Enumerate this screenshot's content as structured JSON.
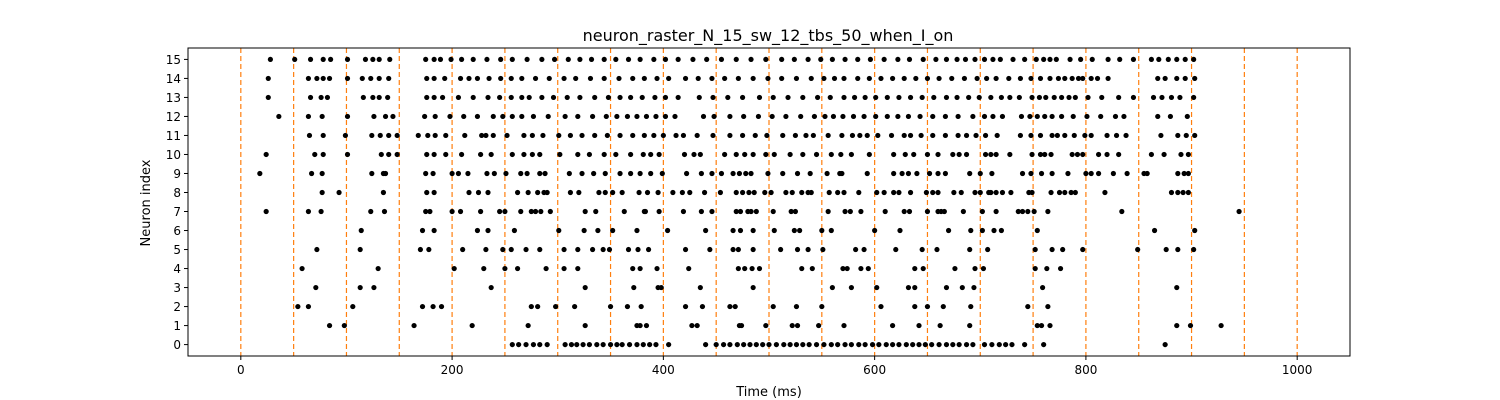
{
  "chart_data": {
    "type": "scatter",
    "title": "neuron_raster_N_15_sw_12_tbs_50_when_I_on",
    "xlabel": "Time (ms)",
    "ylabel": "Neuron index",
    "xlim": [
      -50,
      1050
    ],
    "ylim": [
      -0.6,
      15.6
    ],
    "xticks": [
      0,
      200,
      400,
      600,
      800,
      1000
    ],
    "yticks": [
      0,
      1,
      2,
      3,
      4,
      5,
      6,
      7,
      8,
      9,
      10,
      11,
      12,
      13,
      14,
      15
    ],
    "grid": false,
    "marker_color": "#000000",
    "vline_color": "#ff7f0e",
    "vlines": [
      0,
      50,
      100,
      150,
      200,
      250,
      300,
      350,
      400,
      450,
      500,
      550,
      600,
      650,
      700,
      750,
      800,
      850,
      900,
      950,
      1000
    ],
    "spikes": {
      "0": [
        257,
        263,
        270,
        277,
        283,
        290,
        307,
        313,
        318,
        324,
        330,
        337,
        343,
        350,
        356,
        361,
        368,
        375,
        381,
        387,
        393,
        405,
        440,
        450,
        457,
        463,
        470,
        476,
        482,
        488,
        494,
        500,
        507,
        514,
        520,
        526,
        532,
        538,
        545,
        552,
        559,
        565,
        572,
        578,
        585,
        591,
        598,
        604,
        611,
        617,
        623,
        630,
        636,
        642,
        648,
        654,
        661,
        668,
        674,
        680,
        687,
        693,
        704,
        711,
        718,
        724,
        730,
        742,
        760,
        875
      ],
      "1": [
        84,
        98,
        164,
        219,
        272,
        326,
        375,
        378,
        384,
        427,
        432,
        472,
        474,
        497,
        522,
        527,
        547,
        571,
        617,
        642,
        662,
        690,
        754,
        758,
        766,
        886,
        899,
        928
      ],
      "2": [
        54,
        64,
        106,
        172,
        182,
        190,
        275,
        281,
        298,
        316,
        350,
        366,
        379,
        421,
        437,
        463,
        468,
        504,
        526,
        550,
        606,
        638,
        650,
        665,
        691,
        745,
        764
      ],
      "3": [
        71,
        113,
        126,
        237,
        326,
        372,
        395,
        398,
        435,
        485,
        560,
        578,
        602,
        632,
        638,
        668,
        683,
        694,
        759,
        886
      ],
      "4": [
        58,
        130,
        202,
        230,
        250,
        262,
        289,
        306,
        319,
        371,
        378,
        394,
        424,
        471,
        477,
        484,
        491,
        531,
        541,
        570,
        574,
        587,
        594,
        638,
        646,
        676,
        695,
        703,
        752,
        763,
        776
      ],
      "5": [
        72,
        113,
        170,
        178,
        210,
        232,
        248,
        256,
        270,
        283,
        306,
        319,
        333,
        343,
        349,
        367,
        376,
        386,
        421,
        444,
        466,
        471,
        485,
        511,
        527,
        537,
        551,
        582,
        590,
        620,
        645,
        659,
        690,
        707,
        752,
        768,
        778,
        797,
        849,
        876,
        887,
        902
      ],
      "6": [
        114,
        172,
        183,
        224,
        234,
        259,
        301,
        325,
        338,
        352,
        375,
        404,
        440,
        466,
        473,
        485,
        505,
        524,
        529,
        550,
        559,
        600,
        624,
        670,
        691,
        702,
        713,
        720,
        754,
        865,
        903
      ],
      "7": [
        24,
        64,
        76,
        123,
        136,
        175,
        179,
        200,
        208,
        227,
        245,
        250,
        265,
        275,
        279,
        284,
        293,
        326,
        336,
        363,
        382,
        383,
        396,
        419,
        436,
        446,
        469,
        473,
        480,
        483,
        488,
        504,
        521,
        525,
        556,
        572,
        577,
        587,
        610,
        628,
        633,
        650,
        660,
        663,
        666,
        684,
        702,
        715,
        736,
        740,
        745,
        751,
        764,
        834,
        945
      ],
      "8": [
        77,
        93,
        135,
        176,
        183,
        216,
        225,
        234,
        262,
        272,
        281,
        287,
        290,
        312,
        320,
        339,
        345,
        352,
        361,
        377,
        385,
        395,
        409,
        418,
        425,
        439,
        454,
        469,
        475,
        481,
        486,
        496,
        502,
        516,
        522,
        531,
        537,
        540,
        557,
        565,
        571,
        585,
        602,
        609,
        618,
        623,
        634,
        649,
        655,
        660,
        675,
        682,
        695,
        700,
        708,
        710,
        715,
        721,
        729,
        746,
        749,
        767,
        775,
        780,
        786,
        790,
        818,
        881,
        887,
        892,
        897
      ],
      "9": [
        18,
        67,
        77,
        124,
        135,
        137,
        175,
        182,
        200,
        206,
        215,
        233,
        240,
        251,
        265,
        271,
        283,
        288,
        311,
        323,
        334,
        345,
        359,
        369,
        378,
        388,
        399,
        422,
        436,
        446,
        455,
        466,
        472,
        478,
        483,
        499,
        513,
        527,
        539,
        555,
        567,
        569,
        593,
        618,
        626,
        632,
        640,
        652,
        660,
        667,
        690,
        700,
        711,
        740,
        748,
        758,
        768,
        783,
        800,
        805,
        812,
        826,
        839,
        855,
        858,
        887,
        893,
        897
      ],
      "10": [
        24,
        70,
        78,
        101,
        133,
        140,
        148,
        176,
        183,
        194,
        209,
        227,
        237,
        257,
        268,
        276,
        283,
        302,
        319,
        330,
        344,
        355,
        369,
        381,
        388,
        396,
        420,
        429,
        435,
        458,
        469,
        477,
        485,
        497,
        505,
        520,
        532,
        545,
        559,
        568,
        578,
        595,
        618,
        629,
        637,
        650,
        660,
        674,
        680,
        687,
        705,
        710,
        715,
        728,
        749,
        757,
        761,
        767,
        787,
        792,
        797,
        812,
        820,
        831,
        862,
        874,
        890,
        897
      ],
      "11": [
        65,
        78,
        99,
        124,
        132,
        140,
        148,
        168,
        177,
        184,
        194,
        212,
        228,
        232,
        239,
        252,
        268,
        276,
        286,
        301,
        312,
        323,
        335,
        347,
        359,
        371,
        382,
        391,
        400,
        412,
        419,
        432,
        447,
        463,
        475,
        487,
        498,
        513,
        525,
        535,
        542,
        556,
        569,
        579,
        586,
        593,
        603,
        616,
        628,
        634,
        644,
        655,
        667,
        679,
        687,
        696,
        705,
        716,
        738,
        748,
        757,
        768,
        773,
        780,
        789,
        799,
        805,
        820,
        829,
        838,
        871,
        887,
        895,
        903
      ],
      "12": [
        36,
        64,
        77,
        101,
        126,
        137,
        144,
        174,
        184,
        198,
        211,
        224,
        239,
        248,
        257,
        266,
        277,
        291,
        307,
        319,
        333,
        346,
        356,
        366,
        375,
        384,
        393,
        402,
        411,
        438,
        448,
        463,
        476,
        490,
        503,
        516,
        530,
        543,
        553,
        561,
        570,
        580,
        590,
        601,
        612,
        622,
        632,
        643,
        655,
        667,
        679,
        693,
        704,
        712,
        721,
        739,
        747,
        754,
        761,
        768,
        777,
        788,
        801,
        814,
        828,
        836,
        868,
        880,
        896
      ],
      "13": [
        26,
        66,
        76,
        82,
        116,
        125,
        131,
        139,
        176,
        183,
        191,
        206,
        220,
        234,
        245,
        256,
        266,
        273,
        285,
        296,
        309,
        321,
        335,
        348,
        359,
        369,
        380,
        392,
        402,
        414,
        434,
        447,
        461,
        475,
        491,
        504,
        518,
        532,
        546,
        558,
        571,
        581,
        591,
        601,
        612,
        623,
        634,
        645,
        656,
        668,
        678,
        689,
        699,
        710,
        720,
        728,
        737,
        749,
        756,
        762,
        770,
        777,
        784,
        790,
        802,
        815,
        831,
        845,
        864,
        872,
        881,
        889,
        902
      ],
      "14": [
        26,
        64,
        72,
        78,
        84,
        101,
        115,
        123,
        131,
        140,
        176,
        183,
        193,
        208,
        216,
        224,
        235,
        246,
        256,
        266,
        279,
        292,
        306,
        317,
        331,
        344,
        358,
        371,
        382,
        394,
        405,
        421,
        433,
        446,
        458,
        471,
        485,
        499,
        512,
        526,
        540,
        552,
        562,
        571,
        584,
        595,
        606,
        617,
        628,
        639,
        650,
        661,
        673,
        685,
        697,
        706,
        715,
        727,
        738,
        748,
        757,
        766,
        774,
        780,
        787,
        793,
        797,
        805,
        811,
        821,
        868,
        875,
        886,
        894,
        903
      ],
      "15": [
        28,
        51,
        66,
        78,
        85,
        101,
        118,
        125,
        131,
        141,
        175,
        183,
        189,
        199,
        209,
        220,
        233,
        246,
        257,
        271,
        285,
        297,
        310,
        321,
        332,
        344,
        355,
        367,
        378,
        391,
        402,
        414,
        428,
        441,
        455,
        469,
        483,
        497,
        512,
        524,
        537,
        549,
        560,
        572,
        584,
        596,
        609,
        622,
        633,
        646,
        658,
        668,
        678,
        686,
        695,
        704,
        712,
        719,
        731,
        742,
        753,
        760,
        766,
        772,
        785,
        795,
        806,
        821,
        832,
        845,
        862,
        869,
        878,
        886,
        894,
        902
      ]
    }
  }
}
